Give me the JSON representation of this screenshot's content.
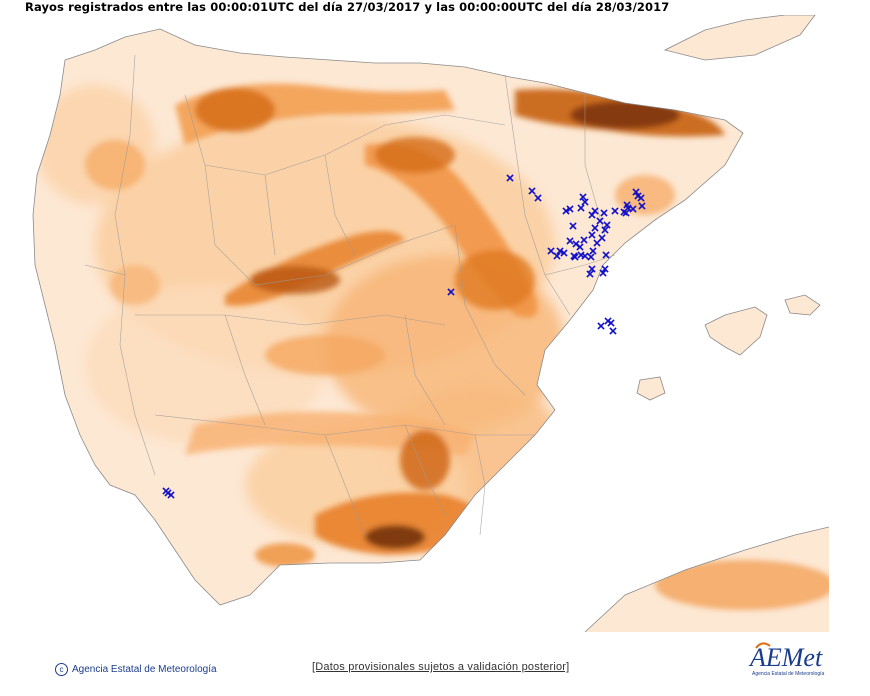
{
  "title": "Rayos registrados entre las 00:00:01UTC del día 27/03/2017 y las 00:00:00UTC del día 28/03/2017",
  "footer": {
    "agency": "Agencia Estatal de Meteorología",
    "disclaimer": "[Datos provisionales sujetos a validación posterior]",
    "logo_text": "AEMet",
    "logo_sub": "Agencia Estatal de Meteorología"
  },
  "colors": {
    "lightning": "#1010c8",
    "terrain_low": "#fde7d0",
    "terrain_mid": "#f6a95a",
    "terrain_high": "#8a3a05",
    "border": "#8a8a8a",
    "logo": "#1a3c8c",
    "logo_accent": "#e06a10"
  },
  "icons": {
    "lightning_marker": "x-mark-icon",
    "copyright": "copyright-icon"
  }
}
